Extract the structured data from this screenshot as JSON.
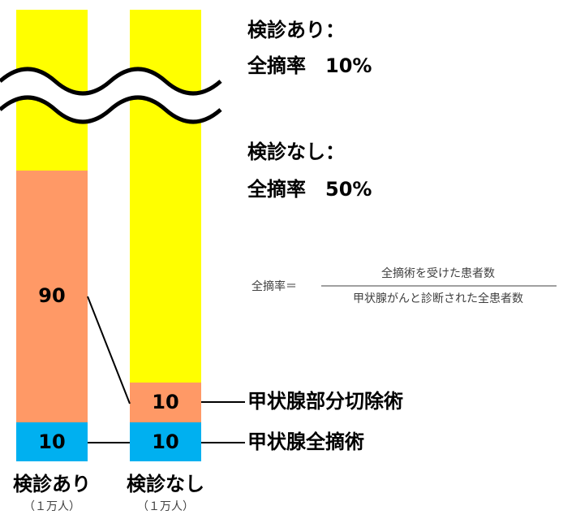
{
  "bars": [
    {
      "label": "検診あり",
      "unit": "（１万人）",
      "partial": 90,
      "total": 10
    },
    {
      "label": "検診なし",
      "unit": "（１万人）",
      "partial": 10,
      "total": 10
    }
  ],
  "notes": [
    {
      "title": "検診あり：",
      "rate": "全摘率　10%"
    },
    {
      "title": "検診なし：",
      "rate": "全摘率　50%"
    }
  ],
  "formula": {
    "lhs": "全摘率＝",
    "numerator": "全摘術を受けた患者数",
    "denominator": "甲状腺がんと診断された全患者数"
  },
  "legend": {
    "partial": "甲状腺部分切除術",
    "total": "甲状腺全摘術"
  }
}
